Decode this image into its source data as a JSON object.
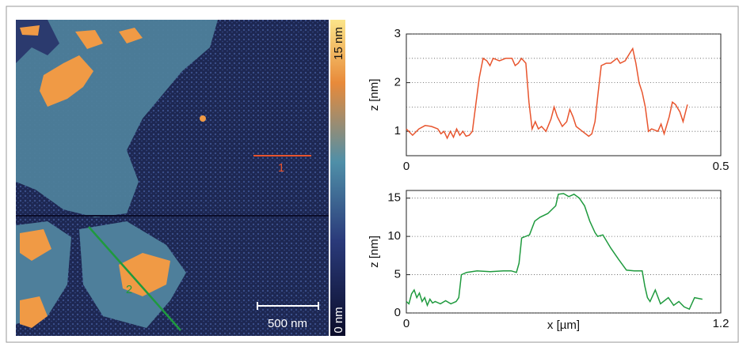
{
  "afm_image": {
    "colorbar_max": "15 nm",
    "colorbar_min": "0 nm",
    "scale_bar": "500 nm",
    "profile_labels": [
      "1",
      "2"
    ]
  },
  "chart_data": [
    {
      "type": "line",
      "ylabel": "z [nm]",
      "color": "#e8552e",
      "xlim": [
        0,
        0.5
      ],
      "xticks": [
        0,
        0.5
      ],
      "ylim": [
        0.5,
        3
      ],
      "yticks": [
        1,
        2,
        3
      ],
      "minor_yticks": [
        1.5,
        2.5
      ],
      "grid": true,
      "x": [
        0,
        0.01,
        0.02,
        0.03,
        0.04,
        0.05,
        0.055,
        0.06,
        0.065,
        0.07,
        0.075,
        0.08,
        0.085,
        0.09,
        0.095,
        0.1,
        0.105,
        0.11,
        0.116,
        0.122,
        0.128,
        0.133,
        0.138,
        0.148,
        0.158,
        0.168,
        0.173,
        0.178,
        0.183,
        0.19,
        0.195,
        0.2,
        0.205,
        0.21,
        0.215,
        0.222,
        0.23,
        0.235,
        0.24,
        0.248,
        0.255,
        0.26,
        0.265,
        0.27,
        0.28,
        0.29,
        0.295,
        0.3,
        0.305,
        0.31,
        0.318,
        0.325,
        0.335,
        0.34,
        0.348,
        0.355,
        0.36,
        0.365,
        0.37,
        0.375,
        0.38,
        0.385,
        0.39,
        0.4,
        0.405,
        0.41,
        0.418,
        0.423,
        0.428,
        0.435,
        0.44,
        0.447
      ],
      "values": [
        1.05,
        0.92,
        1.05,
        1.12,
        1.1,
        1.05,
        0.95,
        1.0,
        0.86,
        1.0,
        0.88,
        1.05,
        0.92,
        1.0,
        0.9,
        0.92,
        1.0,
        1.5,
        2.1,
        2.5,
        2.45,
        2.35,
        2.5,
        2.45,
        2.5,
        2.5,
        2.35,
        2.4,
        2.5,
        2.4,
        1.6,
        1.05,
        1.2,
        1.05,
        1.1,
        1.0,
        1.25,
        1.5,
        1.3,
        1.1,
        1.2,
        1.45,
        1.3,
        1.1,
        1.0,
        0.9,
        0.95,
        1.2,
        1.8,
        2.35,
        2.4,
        2.4,
        2.5,
        2.4,
        2.45,
        2.6,
        2.7,
        2.4,
        2.0,
        1.8,
        1.5,
        1.0,
        1.05,
        1.0,
        1.15,
        0.95,
        1.3,
        1.6,
        1.55,
        1.4,
        1.2,
        1.55
      ]
    },
    {
      "type": "line",
      "ylabel": "z [nm]",
      "xlabel": "x [µm]",
      "color": "#1f9a3e",
      "xlim": [
        0,
        1.2
      ],
      "xticks": [
        0,
        1.2
      ],
      "ylim": [
        0,
        16
      ],
      "yticks": [
        0,
        5,
        10,
        15
      ],
      "grid": true,
      "x": [
        0,
        0.01,
        0.02,
        0.03,
        0.04,
        0.05,
        0.06,
        0.07,
        0.08,
        0.09,
        0.1,
        0.11,
        0.13,
        0.15,
        0.17,
        0.19,
        0.2,
        0.21,
        0.23,
        0.27,
        0.32,
        0.37,
        0.4,
        0.42,
        0.43,
        0.44,
        0.47,
        0.49,
        0.51,
        0.54,
        0.57,
        0.58,
        0.6,
        0.62,
        0.64,
        0.66,
        0.68,
        0.7,
        0.72,
        0.73,
        0.75,
        0.78,
        0.81,
        0.84,
        0.87,
        0.9,
        0.91,
        0.92,
        0.93,
        0.95,
        0.97,
        1.0,
        1.02,
        1.04,
        1.06,
        1.08,
        1.1,
        1.13
      ],
      "values": [
        1.5,
        1.2,
        2.5,
        3.0,
        2.0,
        2.6,
        1.5,
        2.0,
        1.0,
        1.8,
        1.3,
        1.5,
        1.2,
        1.6,
        1.2,
        1.5,
        2.0,
        5.0,
        5.3,
        5.5,
        5.4,
        5.5,
        5.5,
        5.3,
        6.5,
        9.8,
        10.2,
        12,
        12.5,
        13,
        14,
        15.5,
        15.6,
        15.2,
        15.5,
        15,
        14,
        12,
        10.5,
        10,
        10.2,
        8.5,
        7,
        5.6,
        5.5,
        5.5,
        3.5,
        2.0,
        1.5,
        3.0,
        1.2,
        2.0,
        1.0,
        1.5,
        0.8,
        0.5,
        2.0,
        1.8
      ]
    }
  ]
}
